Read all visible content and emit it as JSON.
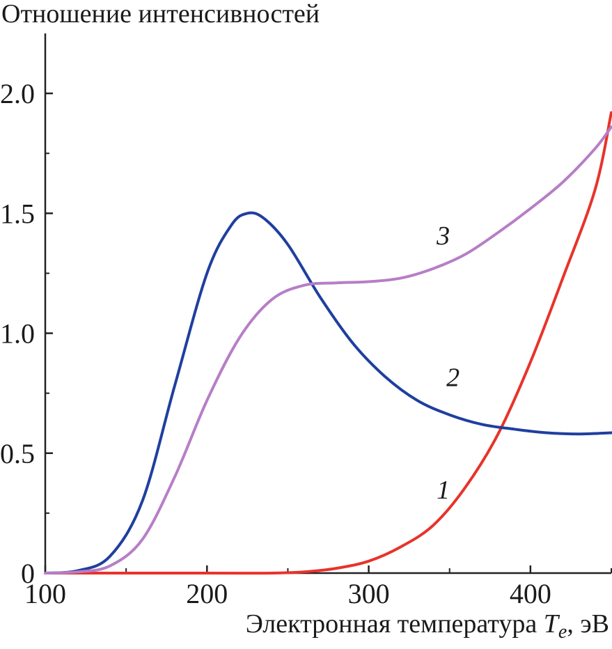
{
  "chart_data": {
    "type": "line",
    "title": "",
    "ylabel": "Отношение интенсивностей",
    "xlabel_text": "Электронная температура ",
    "xlabel_var": "T",
    "xlabel_sub": "e",
    "xlabel_unit": ", эВ",
    "xlim": [
      100,
      450
    ],
    "ylim": [
      0,
      2.25
    ],
    "x_ticks": [
      100,
      200,
      300,
      400
    ],
    "x_tick_labels": [
      "100",
      "200",
      "300",
      "400"
    ],
    "y_ticks": [
      0,
      0.5,
      1.0,
      1.5,
      2.0
    ],
    "y_tick_labels": [
      "0",
      "0.5",
      "1.0",
      "1.5",
      "2.0"
    ],
    "grid": false,
    "legend": "none",
    "series": [
      {
        "name": "1",
        "color": "#e8332a",
        "label_at": [
          342,
          0.31
        ],
        "points": [
          [
            100,
            0
          ],
          [
            200,
            0
          ],
          [
            240,
            0
          ],
          [
            260,
            0.005
          ],
          [
            280,
            0.02
          ],
          [
            300,
            0.05
          ],
          [
            320,
            0.11
          ],
          [
            340,
            0.2
          ],
          [
            360,
            0.36
          ],
          [
            380,
            0.58
          ],
          [
            400,
            0.88
          ],
          [
            420,
            1.23
          ],
          [
            440,
            1.6
          ],
          [
            450,
            1.92
          ]
        ]
      },
      {
        "name": "2",
        "color": "#1f3f9f",
        "label_at": [
          348,
          0.78
        ],
        "points": [
          [
            100,
            0
          ],
          [
            120,
            0.01
          ],
          [
            140,
            0.07
          ],
          [
            160,
            0.3
          ],
          [
            180,
            0.78
          ],
          [
            200,
            1.25
          ],
          [
            215,
            1.45
          ],
          [
            225,
            1.5
          ],
          [
            235,
            1.48
          ],
          [
            250,
            1.37
          ],
          [
            270,
            1.15
          ],
          [
            290,
            0.96
          ],
          [
            310,
            0.82
          ],
          [
            330,
            0.72
          ],
          [
            350,
            0.66
          ],
          [
            370,
            0.62
          ],
          [
            390,
            0.6
          ],
          [
            410,
            0.585
          ],
          [
            430,
            0.58
          ],
          [
            450,
            0.585
          ]
        ]
      },
      {
        "name": "3",
        "color": "#b77ec6",
        "label_at": [
          342,
          1.37
        ],
        "points": [
          [
            100,
            0
          ],
          [
            120,
            0.005
          ],
          [
            140,
            0.03
          ],
          [
            160,
            0.14
          ],
          [
            180,
            0.4
          ],
          [
            200,
            0.72
          ],
          [
            220,
            0.98
          ],
          [
            240,
            1.14
          ],
          [
            260,
            1.2
          ],
          [
            280,
            1.21
          ],
          [
            300,
            1.215
          ],
          [
            320,
            1.23
          ],
          [
            340,
            1.27
          ],
          [
            360,
            1.33
          ],
          [
            380,
            1.42
          ],
          [
            400,
            1.52
          ],
          [
            420,
            1.63
          ],
          [
            440,
            1.77
          ],
          [
            450,
            1.86
          ]
        ]
      }
    ]
  }
}
